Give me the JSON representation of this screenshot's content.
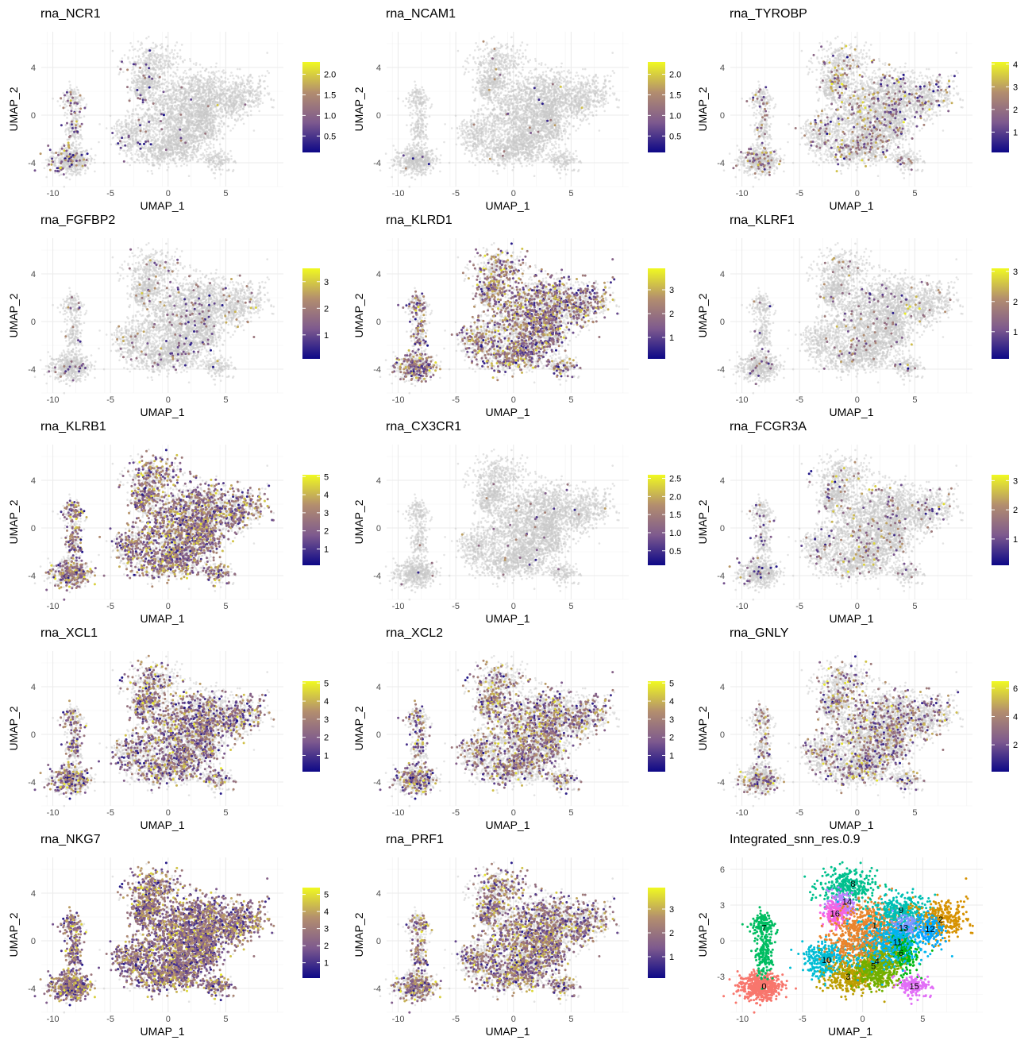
{
  "chart_data": [
    {
      "type": "scatter",
      "title": "rna_NCR1",
      "xlabel": "UMAP_1",
      "ylabel": "UMAP_2",
      "xticks": [
        "-10",
        "-5",
        "0",
        "5"
      ],
      "yticks": [
        "-4",
        "0",
        "4"
      ],
      "xlim": [
        -11,
        10
      ],
      "ylim": [
        -6,
        7
      ],
      "grid": true,
      "legend": "right",
      "colorbar": {
        "min": 0.1,
        "max": 2.3,
        "ticks": [
          "0.5",
          "1.0",
          "1.5",
          "2.0"
        ],
        "tick_values": [
          0.5,
          1.0,
          1.5,
          2.0
        ],
        "colors": [
          "#0d0887",
          "#7e5a8e",
          "#b38e6e",
          "#f0f921"
        ]
      },
      "expressing_fraction": 0.004
    },
    {
      "type": "scatter",
      "title": "rna_NCAM1",
      "xlabel": "UMAP_1",
      "ylabel": "UMAP_2",
      "xticks": [
        "-10",
        "-5",
        "0",
        "5"
      ],
      "yticks": [
        "-4",
        "0",
        "4"
      ],
      "xlim": [
        -11,
        10
      ],
      "ylim": [
        -6,
        7
      ],
      "grid": true,
      "legend": "right",
      "colorbar": {
        "min": 0.1,
        "max": 2.3,
        "ticks": [
          "0.5",
          "1.0",
          "1.5",
          "2.0"
        ],
        "tick_values": [
          0.5,
          1.0,
          1.5,
          2.0
        ],
        "colors": [
          "#0d0887",
          "#7e5a8e",
          "#b38e6e",
          "#f0f921"
        ]
      },
      "expressing_fraction": 0.006
    },
    {
      "type": "scatter",
      "title": "rna_TYROBP",
      "xlabel": "UMAP_1",
      "ylabel": "UMAP_2",
      "xticks": [
        "-10",
        "-5",
        "0",
        "5"
      ],
      "yticks": [
        "-4",
        "0",
        "4"
      ],
      "xlim": [
        -11,
        10
      ],
      "ylim": [
        -6,
        7
      ],
      "grid": true,
      "legend": "right",
      "colorbar": {
        "min": 0.1,
        "max": 4.1,
        "ticks": [
          "1",
          "2",
          "3",
          "4"
        ],
        "tick_values": [
          1,
          2,
          3,
          4
        ],
        "colors": [
          "#0d0887",
          "#7e5a8e",
          "#b38e6e",
          "#f0f921"
        ]
      },
      "expressing_fraction": 0.1
    },
    {
      "type": "scatter",
      "title": "rna_FGFBP2",
      "xlabel": "UMAP_1",
      "ylabel": "UMAP_2",
      "xticks": [
        "-10",
        "-5",
        "0",
        "5"
      ],
      "yticks": [
        "-4",
        "0",
        "4"
      ],
      "xlim": [
        -11,
        10
      ],
      "ylim": [
        -6,
        7
      ],
      "grid": true,
      "legend": "right",
      "colorbar": {
        "min": 0.1,
        "max": 3.5,
        "ticks": [
          "1",
          "2",
          "3"
        ],
        "tick_values": [
          1,
          2,
          3
        ],
        "colors": [
          "#0d0887",
          "#7e5a8e",
          "#b38e6e",
          "#f0f921"
        ]
      },
      "expressing_fraction": 0.04
    },
    {
      "type": "scatter",
      "title": "rna_KLRD1",
      "xlabel": "UMAP_1",
      "ylabel": "UMAP_2",
      "xticks": [
        "-10",
        "-5",
        "0",
        "5"
      ],
      "yticks": [
        "-4",
        "0",
        "4"
      ],
      "xlim": [
        -11,
        10
      ],
      "ylim": [
        -6,
        7
      ],
      "grid": true,
      "legend": "right",
      "colorbar": {
        "min": 0.1,
        "max": 3.9,
        "ticks": [
          "1",
          "2",
          "3"
        ],
        "tick_values": [
          1,
          2,
          3
        ],
        "colors": [
          "#0d0887",
          "#7e5a8e",
          "#b38e6e",
          "#f0f921"
        ]
      },
      "expressing_fraction": 0.35
    },
    {
      "type": "scatter",
      "title": "rna_KLRF1",
      "xlabel": "UMAP_1",
      "ylabel": "UMAP_2",
      "xticks": [
        "-10",
        "-5",
        "0",
        "5"
      ],
      "yticks": [
        "-4",
        "0",
        "4"
      ],
      "xlim": [
        -11,
        10
      ],
      "ylim": [
        -6,
        7
      ],
      "grid": true,
      "legend": "right",
      "colorbar": {
        "min": 0.1,
        "max": 3.1,
        "ticks": [
          "1",
          "2",
          "3"
        ],
        "tick_values": [
          1,
          2,
          3
        ],
        "colors": [
          "#0d0887",
          "#7e5a8e",
          "#b38e6e",
          "#f0f921"
        ]
      },
      "expressing_fraction": 0.03
    },
    {
      "type": "scatter",
      "title": "rna_KLRB1",
      "xlabel": "UMAP_1",
      "ylabel": "UMAP_2",
      "xticks": [
        "-10",
        "-5",
        "0",
        "5"
      ],
      "yticks": [
        "-4",
        "0",
        "4"
      ],
      "xlim": [
        -11,
        10
      ],
      "ylim": [
        -6,
        7
      ],
      "grid": true,
      "legend": "right",
      "colorbar": {
        "min": 0.1,
        "max": 5.1,
        "ticks": [
          "1",
          "2",
          "3",
          "4",
          "5"
        ],
        "tick_values": [
          1,
          2,
          3,
          4,
          5
        ],
        "colors": [
          "#0d0887",
          "#7e5a8e",
          "#b38e6e",
          "#f0f921"
        ]
      },
      "expressing_fraction": 0.42
    },
    {
      "type": "scatter",
      "title": "rna_CX3CR1",
      "xlabel": "UMAP_1",
      "ylabel": "UMAP_2",
      "xticks": [
        "-10",
        "-5",
        "0",
        "5"
      ],
      "yticks": [
        "-4",
        "0",
        "4"
      ],
      "xlim": [
        -11,
        10
      ],
      "ylim": [
        -6,
        7
      ],
      "grid": true,
      "legend": "right",
      "colorbar": {
        "min": 0.1,
        "max": 2.6,
        "ticks": [
          "0.5",
          "1.0",
          "1.5",
          "2.0",
          "2.5"
        ],
        "tick_values": [
          0.5,
          1.0,
          1.5,
          2.0,
          2.5
        ],
        "colors": [
          "#0d0887",
          "#7e5a8e",
          "#b38e6e",
          "#f0f921"
        ]
      },
      "expressing_fraction": 0.008
    },
    {
      "type": "scatter",
      "title": "rna_FCGR3A",
      "xlabel": "UMAP_1",
      "ylabel": "UMAP_2",
      "xticks": [
        "-10",
        "-5",
        "0",
        "5"
      ],
      "yticks": [
        "-4",
        "0",
        "4"
      ],
      "xlim": [
        -11,
        10
      ],
      "ylim": [
        -6,
        7
      ],
      "grid": true,
      "legend": "right",
      "colorbar": {
        "min": 0.1,
        "max": 3.2,
        "ticks": [
          "1",
          "2",
          "3"
        ],
        "tick_values": [
          1,
          2,
          3
        ],
        "colors": [
          "#0d0887",
          "#7e5a8e",
          "#b38e6e",
          "#f0f921"
        ]
      },
      "expressing_fraction": 0.05
    },
    {
      "type": "scatter",
      "title": "rna_XCL1",
      "xlabel": "UMAP_1",
      "ylabel": "UMAP_2",
      "xticks": [
        "-10",
        "-5",
        "0",
        "5"
      ],
      "yticks": [
        "-4",
        "0",
        "4"
      ],
      "xlim": [
        -11,
        10
      ],
      "ylim": [
        -6,
        7
      ],
      "grid": true,
      "legend": "right",
      "colorbar": {
        "min": 0.1,
        "max": 5.1,
        "ticks": [
          "1",
          "2",
          "3",
          "4",
          "5"
        ],
        "tick_values": [
          1,
          2,
          3,
          4,
          5
        ],
        "colors": [
          "#0d0887",
          "#7e5a8e",
          "#b38e6e",
          "#f0f921"
        ]
      },
      "expressing_fraction": 0.35
    },
    {
      "type": "scatter",
      "title": "rna_XCL2",
      "xlabel": "UMAP_1",
      "ylabel": "UMAP_2",
      "xticks": [
        "-10",
        "-5",
        "0",
        "5"
      ],
      "yticks": [
        "-4",
        "0",
        "4"
      ],
      "xlim": [
        -11,
        10
      ],
      "ylim": [
        -6,
        7
      ],
      "grid": true,
      "legend": "right",
      "colorbar": {
        "min": 0.1,
        "max": 5.1,
        "ticks": [
          "1",
          "2",
          "3",
          "4",
          "5"
        ],
        "tick_values": [
          1,
          2,
          3,
          4,
          5
        ],
        "colors": [
          "#0d0887",
          "#7e5a8e",
          "#b38e6e",
          "#f0f921"
        ]
      },
      "expressing_fraction": 0.3
    },
    {
      "type": "scatter",
      "title": "rna_GNLY",
      "xlabel": "UMAP_1",
      "ylabel": "UMAP_2",
      "xticks": [
        "-10",
        "-5",
        "0",
        "5"
      ],
      "yticks": [
        "-4",
        "0",
        "4"
      ],
      "xlim": [
        -11,
        10
      ],
      "ylim": [
        -6,
        7
      ],
      "grid": true,
      "legend": "right",
      "colorbar": {
        "min": 0.1,
        "max": 6.5,
        "ticks": [
          "2",
          "4",
          "6"
        ],
        "tick_values": [
          2,
          4,
          6
        ],
        "colors": [
          "#0d0887",
          "#7e5a8e",
          "#b38e6e",
          "#f0f921"
        ]
      },
      "expressing_fraction": 0.18
    },
    {
      "type": "scatter",
      "title": "rna_NKG7",
      "xlabel": "UMAP_1",
      "ylabel": "UMAP_2",
      "xticks": [
        "-10",
        "-5",
        "0",
        "5"
      ],
      "yticks": [
        "-4",
        "0",
        "4"
      ],
      "xlim": [
        -11,
        10
      ],
      "ylim": [
        -6,
        7
      ],
      "grid": true,
      "legend": "right",
      "colorbar": {
        "min": 0.1,
        "max": 5.4,
        "ticks": [
          "1",
          "2",
          "3",
          "4",
          "5"
        ],
        "tick_values": [
          1,
          2,
          3,
          4,
          5
        ],
        "colors": [
          "#0d0887",
          "#7e5a8e",
          "#b38e6e",
          "#f0f921"
        ]
      },
      "expressing_fraction": 0.75
    },
    {
      "type": "scatter",
      "title": "rna_PRF1",
      "xlabel": "UMAP_1",
      "ylabel": "UMAP_2",
      "xticks": [
        "-10",
        "-5",
        "0",
        "5"
      ],
      "yticks": [
        "-4",
        "0",
        "4"
      ],
      "xlim": [
        -11,
        10
      ],
      "ylim": [
        -6,
        7
      ],
      "grid": true,
      "legend": "right",
      "colorbar": {
        "min": 0.1,
        "max": 3.9,
        "ticks": [
          "1",
          "2",
          "3"
        ],
        "tick_values": [
          1,
          2,
          3
        ],
        "colors": [
          "#0d0887",
          "#7e5a8e",
          "#b38e6e",
          "#f0f921"
        ]
      },
      "expressing_fraction": 0.4
    },
    {
      "type": "scatter",
      "title": "Integrated_snn_res.0.9",
      "xlabel": "UMAP_1",
      "ylabel": "UMAP_2",
      "xticks": [
        "-10",
        "-5",
        "0",
        "5"
      ],
      "yticks": [
        "-3",
        "0",
        "3",
        "6"
      ],
      "xlim": [
        -11,
        10
      ],
      "ylim": [
        -6,
        7
      ],
      "grid": true,
      "legend": "none",
      "clusters": [
        {
          "label": "0",
          "x": -8.2,
          "y": -3.8,
          "color": "#f8766d"
        },
        {
          "label": "1",
          "x": 1.0,
          "y": 1.3,
          "color": "#e9842c"
        },
        {
          "label": "2",
          "x": 6.5,
          "y": 1.8,
          "color": "#d69100"
        },
        {
          "label": "3",
          "x": -1.2,
          "y": -3.0,
          "color": "#bc9d00"
        },
        {
          "label": "4",
          "x": 1.2,
          "y": -1.7,
          "color": "#9ca700"
        },
        {
          "label": "5",
          "x": 0.9,
          "y": -2.1,
          "color": "#6fb000"
        },
        {
          "label": "6",
          "x": 3.2,
          "y": -1.0,
          "color": "#00b813"
        },
        {
          "label": "7",
          "x": -8.2,
          "y": 1.1,
          "color": "#00bd61"
        },
        {
          "label": "8",
          "x": -0.8,
          "y": 4.8,
          "color": "#00c08e"
        },
        {
          "label": "9",
          "x": 3.2,
          "y": 2.6,
          "color": "#00c0b4"
        },
        {
          "label": "10",
          "x": -3.0,
          "y": -1.6,
          "color": "#00bdd4"
        },
        {
          "label": "11",
          "x": 2.9,
          "y": -0.1,
          "color": "#00b5ee"
        },
        {
          "label": "12",
          "x": 5.6,
          "y": 1.0,
          "color": "#00a7ff"
        },
        {
          "label": "13",
          "x": 3.4,
          "y": 1.1,
          "color": "#7f96ff"
        },
        {
          "label": "14",
          "x": -1.3,
          "y": 3.3,
          "color": "#bc81ff"
        },
        {
          "label": "15",
          "x": 4.3,
          "y": -3.8,
          "color": "#e26ef7"
        },
        {
          "label": "16",
          "x": -2.3,
          "y": 2.3,
          "color": "#f863df"
        },
        {
          "label": "17",
          "x": -1.6,
          "y": 3.0,
          "color": "#ff62bf"
        }
      ]
    }
  ]
}
